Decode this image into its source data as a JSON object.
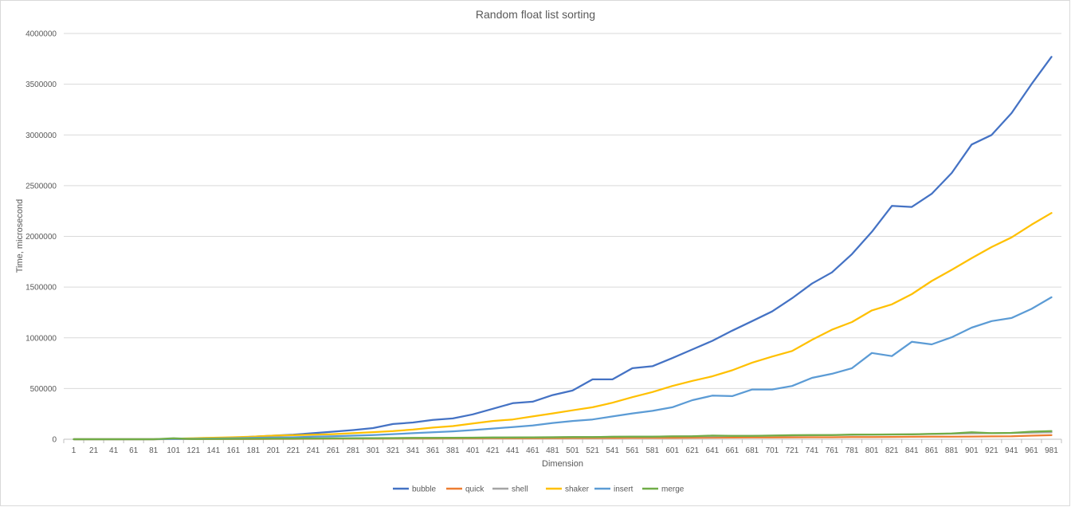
{
  "chart_data": {
    "type": "line",
    "title": "Random float list sorting",
    "xlabel": "Dimension",
    "ylabel": "Time, microsecond",
    "ylim": [
      0,
      4000000
    ],
    "yticks": [
      "0",
      "500000",
      "1000000",
      "1500000",
      "2000000",
      "2500000",
      "3000000",
      "3500000",
      "4000000"
    ],
    "grid": true,
    "legend_position": "bottom",
    "x": [
      1,
      21,
      41,
      61,
      81,
      101,
      121,
      141,
      161,
      181,
      201,
      221,
      241,
      261,
      281,
      301,
      321,
      341,
      361,
      381,
      401,
      421,
      441,
      461,
      481,
      501,
      521,
      541,
      561,
      581,
      601,
      621,
      641,
      661,
      681,
      701,
      721,
      741,
      761,
      781,
      801,
      821,
      841,
      861,
      881,
      901,
      921,
      941,
      961,
      981
    ],
    "series": [
      {
        "name": "bubble",
        "color": "#4472C4",
        "values": [
          0,
          0,
          0,
          0,
          0,
          5000,
          5000,
          10000,
          15000,
          25000,
          35000,
          45000,
          60000,
          75000,
          90000,
          110000,
          150000,
          165000,
          190000,
          205000,
          245000,
          300000,
          355000,
          370000,
          435000,
          480000,
          590000,
          590000,
          700000,
          720000,
          800000,
          885000,
          970000,
          1070000,
          1165000,
          1260000,
          1390000,
          1535000,
          1645000,
          1825000,
          2045000,
          2300000,
          2290000,
          2420000,
          2625000,
          2905000,
          3000000,
          3215000,
          3500000,
          3770000
        ]
      },
      {
        "name": "quick",
        "color": "#ED7D31",
        "values": [
          0,
          0,
          0,
          0,
          0,
          1000,
          1000,
          1500,
          2000,
          2500,
          3000,
          3500,
          4000,
          5000,
          5500,
          6000,
          7000,
          7500,
          8000,
          8500,
          9000,
          9500,
          10000,
          10500,
          11000,
          11500,
          12000,
          12500,
          13000,
          14000,
          14500,
          15000,
          16000,
          16500,
          17000,
          18000,
          18500,
          19500,
          20000,
          21000,
          22000,
          23000,
          24000,
          25000,
          26000,
          27000,
          28000,
          29000,
          35000,
          40000
        ]
      },
      {
        "name": "shell",
        "color": "#A5A5A5",
        "values": [
          0,
          0,
          0,
          0,
          0,
          1500,
          2000,
          2500,
          3000,
          4000,
          5000,
          6000,
          7000,
          8000,
          9000,
          10000,
          11000,
          12000,
          13000,
          14000,
          15000,
          16000,
          17000,
          18500,
          20000,
          21000,
          22000,
          24000,
          25000,
          26000,
          28000,
          29000,
          30000,
          32000,
          34000,
          35000,
          37000,
          39000,
          41000,
          43000,
          45000,
          47000,
          49000,
          52000,
          55000,
          58000,
          60000,
          62000,
          65000,
          68000
        ]
      },
      {
        "name": "shaker",
        "color": "#FFC000",
        "values": [
          0,
          0,
          0,
          0,
          0,
          5000,
          10000,
          15000,
          20000,
          25000,
          35000,
          40000,
          45000,
          50000,
          60000,
          70000,
          80000,
          95000,
          115000,
          130000,
          155000,
          180000,
          195000,
          225000,
          255000,
          285000,
          315000,
          360000,
          415000,
          465000,
          525000,
          575000,
          620000,
          680000,
          755000,
          815000,
          870000,
          980000,
          1080000,
          1155000,
          1270000,
          1330000,
          1430000,
          1560000,
          1670000,
          1785000,
          1895000,
          1990000,
          2115000,
          2230000
        ]
      },
      {
        "name": "insert",
        "color": "#5B9BD5",
        "values": [
          0,
          0,
          0,
          0,
          0,
          3000,
          5000,
          7000,
          10000,
          13000,
          17000,
          20000,
          25000,
          30000,
          35000,
          42000,
          50000,
          60000,
          68000,
          78000,
          90000,
          105000,
          120000,
          135000,
          160000,
          180000,
          195000,
          225000,
          255000,
          280000,
          315000,
          385000,
          430000,
          425000,
          490000,
          490000,
          525000,
          605000,
          645000,
          700000,
          850000,
          820000,
          960000,
          935000,
          1005000,
          1100000,
          1165000,
          1195000,
          1285000,
          1400000
        ]
      },
      {
        "name": "merge",
        "color": "#70AD47",
        "values": [
          0,
          0,
          0,
          0,
          0,
          10000,
          2000,
          3000,
          4000,
          5000,
          6000,
          7000,
          8000,
          9000,
          10000,
          11000,
          12000,
          13000,
          14000,
          15000,
          16000,
          17000,
          18000,
          19000,
          20000,
          21000,
          22000,
          24000,
          25000,
          26000,
          28000,
          29000,
          36000,
          33000,
          34000,
          36000,
          40000,
          41000,
          42000,
          46000,
          46000,
          47000,
          48000,
          53000,
          57000,
          68000,
          60000,
          63000,
          75000,
          80000
        ]
      }
    ]
  }
}
